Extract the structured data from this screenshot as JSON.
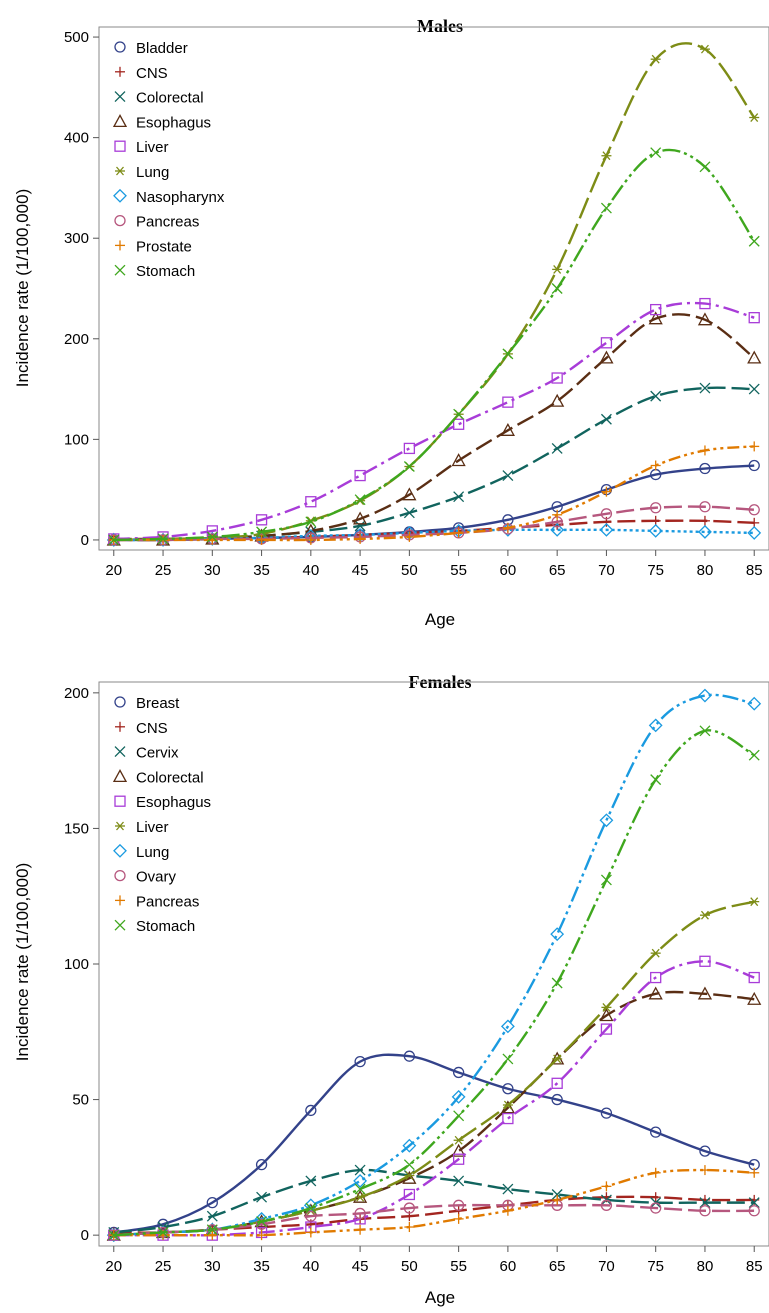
{
  "chart_data": [
    {
      "type": "line",
      "title": "Males",
      "xlabel": "Age",
      "ylabel": "Incidence rate (1/100,000)",
      "x": [
        20,
        25,
        30,
        35,
        40,
        45,
        50,
        55,
        60,
        65,
        70,
        75,
        80,
        85
      ],
      "xlim": [
        18.5,
        86.5
      ],
      "ylim": [
        -10,
        510
      ],
      "yticks": [
        0,
        100,
        200,
        300,
        400,
        500
      ],
      "grid": false,
      "legend": "top-left",
      "series": [
        {
          "name": "Bladder",
          "marker": "circle",
          "color": "#33428a",
          "dash": "",
          "values": [
            0,
            0,
            1,
            2,
            3,
            5,
            8,
            12,
            20,
            33,
            50,
            65,
            71,
            74
          ]
        },
        {
          "name": "CNS",
          "marker": "plus",
          "color": "#a3251f",
          "dash": "18 6",
          "values": [
            1,
            1,
            2,
            2,
            3,
            5,
            7,
            9,
            12,
            15,
            18,
            19,
            19,
            17
          ]
        },
        {
          "name": "Colorectal",
          "marker": "x",
          "color": "#11645e",
          "dash": "18 6",
          "values": [
            0,
            1,
            2,
            4,
            8,
            14,
            27,
            43,
            64,
            91,
            120,
            143,
            151,
            150
          ]
        },
        {
          "name": "Esophagus",
          "marker": "triangle",
          "color": "#5a2e14",
          "dash": "18 6",
          "values": [
            0,
            0,
            1,
            4,
            9,
            21,
            45,
            79,
            109,
            138,
            181,
            220,
            219,
            181
          ]
        },
        {
          "name": "Liver",
          "marker": "square",
          "color": "#a83cd8",
          "dash": "16 5 3 5",
          "values": [
            1,
            3,
            9,
            20,
            38,
            64,
            91,
            115,
            137,
            161,
            196,
            229,
            235,
            221
          ]
        },
        {
          "name": "Lung",
          "marker": "asterisk",
          "color": "#7d8c16",
          "dash": "22 6",
          "values": [
            0,
            1,
            2,
            6,
            19,
            39,
            73,
            125,
            185,
            269,
            382,
            478,
            488,
            420
          ]
        },
        {
          "name": "Nasopharynx",
          "marker": "diamond",
          "color": "#1a9ae0",
          "dash": "3 3",
          "values": [
            0,
            0,
            1,
            2,
            4,
            5,
            7,
            9,
            10,
            10,
            10,
            9,
            8,
            7
          ]
        },
        {
          "name": "Pancreas",
          "marker": "circle",
          "color": "#b6577e",
          "dash": "18 6",
          "values": [
            0,
            0,
            1,
            1,
            2,
            3,
            5,
            7,
            11,
            18,
            26,
            32,
            33,
            30
          ]
        },
        {
          "name": "Prostate",
          "marker": "plus",
          "color": "#e07a00",
          "dash": "12 4 3 4 3 4",
          "values": [
            0,
            0,
            0,
            0,
            0,
            1,
            3,
            7,
            12,
            25,
            48,
            74,
            89,
            93
          ]
        },
        {
          "name": "Stomach",
          "marker": "x",
          "color": "#3fa71e",
          "dash": "18 4 3 4 3 4",
          "values": [
            0,
            1,
            3,
            8,
            18,
            40,
            73,
            125,
            185,
            250,
            330,
            385,
            371,
            297
          ]
        }
      ]
    },
    {
      "type": "line",
      "title": "Females",
      "xlabel": "Age",
      "ylabel": "Incidence rate (1/100,000)",
      "x": [
        20,
        25,
        30,
        35,
        40,
        45,
        50,
        55,
        60,
        65,
        70,
        75,
        80,
        85
      ],
      "xlim": [
        18.5,
        86.5
      ],
      "ylim": [
        -4,
        204
      ],
      "yticks": [
        0,
        50,
        100,
        150,
        200
      ],
      "grid": false,
      "legend": "top-left",
      "series": [
        {
          "name": "Breast",
          "marker": "circle",
          "color": "#33428a",
          "dash": "",
          "values": [
            1,
            4,
            12,
            26,
            46,
            64,
            66,
            60,
            54,
            50,
            45,
            38,
            31,
            26
          ]
        },
        {
          "name": "CNS",
          "marker": "plus",
          "color": "#a3251f",
          "dash": "18 6",
          "values": [
            1,
            1,
            2,
            3,
            4,
            6,
            7,
            9,
            11,
            13,
            14,
            14,
            13,
            13
          ]
        },
        {
          "name": "Cervix",
          "marker": "x",
          "color": "#11645e",
          "dash": "18 6",
          "values": [
            1,
            3,
            7,
            14,
            20,
            24,
            22,
            20,
            17,
            15,
            13,
            12,
            12,
            12
          ]
        },
        {
          "name": "Colorectal",
          "marker": "triangle",
          "color": "#5a2e14",
          "dash": "18 6",
          "values": [
            0,
            1,
            2,
            5,
            9,
            14,
            21,
            31,
            47,
            65,
            81,
            89,
            89,
            87
          ]
        },
        {
          "name": "Esophagus",
          "marker": "square",
          "color": "#a83cd8",
          "dash": "16 5 3 5",
          "values": [
            0,
            0,
            0,
            1,
            3,
            6,
            15,
            28,
            43,
            56,
            76,
            95,
            101,
            95
          ]
        },
        {
          "name": "Liver",
          "marker": "asterisk",
          "color": "#7d8c16",
          "dash": "22 6",
          "values": [
            0,
            1,
            2,
            5,
            9,
            14,
            22,
            35,
            48,
            65,
            84,
            104,
            118,
            123
          ]
        },
        {
          "name": "Lung",
          "marker": "diamond",
          "color": "#1a9ae0",
          "dash": "16 4 3 4 3 4",
          "values": [
            0,
            1,
            2,
            6,
            11,
            20,
            33,
            51,
            77,
            111,
            153,
            188,
            199,
            196
          ]
        },
        {
          "name": "Ovary",
          "marker": "circle",
          "color": "#b6577e",
          "dash": "18 6",
          "values": [
            0,
            1,
            2,
            4,
            7,
            8,
            10,
            11,
            11,
            11,
            11,
            10,
            9,
            9
          ]
        },
        {
          "name": "Pancreas",
          "marker": "plus",
          "color": "#e07a00",
          "dash": "12 4 3 4 3 4",
          "values": [
            0,
            0,
            0,
            0,
            1,
            2,
            3,
            6,
            9,
            13,
            18,
            23,
            24,
            23
          ]
        },
        {
          "name": "Stomach",
          "marker": "x",
          "color": "#3fa71e",
          "dash": "18 4 3 4 3 4",
          "values": [
            0,
            1,
            2,
            5,
            10,
            17,
            26,
            44,
            65,
            93,
            131,
            168,
            186,
            177
          ]
        }
      ]
    }
  ]
}
